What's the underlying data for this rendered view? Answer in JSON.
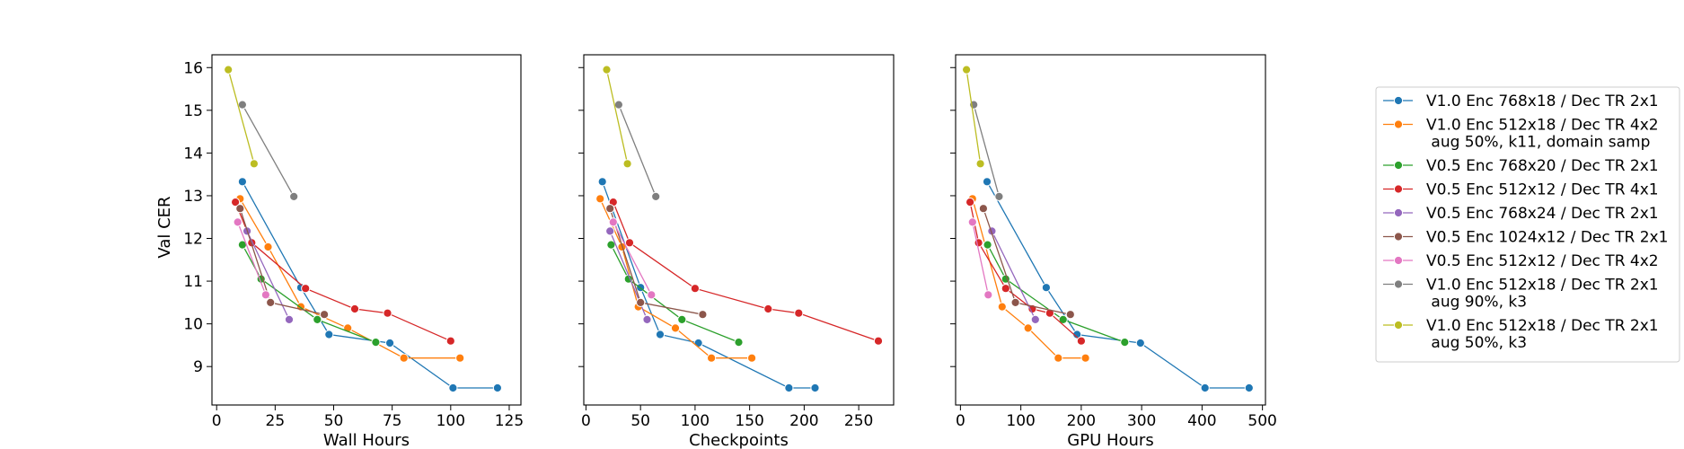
{
  "chart_data": {
    "type": "line",
    "ylabel": "Val CER",
    "sharey": true,
    "ylim": [
      8.1,
      16.3
    ],
    "yticks": [
      "9",
      "10",
      "11",
      "12",
      "13",
      "14",
      "15",
      "16"
    ],
    "legend_placement": "right",
    "colors": [
      "#1f77b4",
      "#ff7f0e",
      "#2ca02c",
      "#d62728",
      "#9467bd",
      "#8c564b",
      "#e377c2",
      "#7f7f7f",
      "#bcbd22"
    ],
    "legend": [
      [
        "V1.0 Enc 768x18 / Dec TR 2x1"
      ],
      [
        "V1.0 Enc 512x18 / Dec TR 4x2",
        " aug 50%, k11, domain samp"
      ],
      [
        "V0.5 Enc 768x20 / Dec TR 2x1"
      ],
      [
        "V0.5 Enc 512x12 / Dec TR 4x1"
      ],
      [
        "V0.5 Enc 768x24 / Dec TR 2x1"
      ],
      [
        "V0.5 Enc 1024x12 / Dec TR 2x1"
      ],
      [
        "V0.5 Enc 512x12 / Dec TR 4x2"
      ],
      [
        "V1.0 Enc 512x18 / Dec TR 2x1",
        " aug 90%, k3"
      ],
      [
        "V1.0 Enc 512x18 / Dec TR 2x1",
        " aug 50%, k3"
      ]
    ],
    "panels": [
      {
        "xlabel": "Wall Hours",
        "xlim": [
          -2,
          130
        ],
        "xticks": [
          "0",
          "25",
          "50",
          "75",
          "100",
          "125"
        ],
        "series": [
          [
            [
              11,
              13.33
            ],
            [
              36,
              10.85
            ],
            [
              48,
              9.75
            ],
            [
              74,
              9.55
            ],
            [
              101,
              8.5
            ],
            [
              120,
              8.5
            ]
          ],
          [
            [
              10,
              12.93
            ],
            [
              22,
              11.8
            ],
            [
              36,
              10.4
            ],
            [
              56,
              9.9
            ],
            [
              80,
              9.2
            ],
            [
              104,
              9.2
            ]
          ],
          [
            [
              11,
              11.85
            ],
            [
              19,
              11.05
            ],
            [
              43,
              10.1
            ],
            [
              68,
              9.57
            ]
          ],
          [
            [
              8,
              12.85
            ],
            [
              15,
              11.9
            ],
            [
              38,
              10.83
            ],
            [
              59,
              10.35
            ],
            [
              73,
              10.25
            ],
            [
              100,
              9.6
            ]
          ],
          [
            [
              13,
              12.17
            ],
            [
              31,
              10.1
            ]
          ],
          [
            [
              10,
              12.7
            ],
            [
              23,
              10.5
            ],
            [
              46,
              10.22
            ]
          ],
          [
            [
              9,
              12.38
            ],
            [
              21,
              10.68
            ]
          ],
          [
            [
              11,
              15.13
            ],
            [
              33,
              12.98
            ]
          ],
          [
            [
              5,
              15.95
            ],
            [
              16,
              13.75
            ]
          ]
        ]
      },
      {
        "xlabel": "Checkpoints",
        "xlim": [
          -2,
          282
        ],
        "xticks": [
          "0",
          "50",
          "100",
          "150",
          "200",
          "250"
        ],
        "series": [
          [
            [
              15,
              13.33
            ],
            [
              50,
              10.85
            ],
            [
              68,
              9.75
            ],
            [
              103,
              9.55
            ],
            [
              186,
              8.5
            ],
            [
              210,
              8.5
            ]
          ],
          [
            [
              13,
              12.93
            ],
            [
              33,
              11.8
            ],
            [
              48,
              10.4
            ],
            [
              82,
              9.9
            ],
            [
              115,
              9.2
            ],
            [
              152,
              9.2
            ]
          ],
          [
            [
              23,
              11.85
            ],
            [
              39,
              11.05
            ],
            [
              88,
              10.1
            ],
            [
              140,
              9.57
            ]
          ],
          [
            [
              25,
              12.85
            ],
            [
              40,
              11.9
            ],
            [
              100,
              10.83
            ],
            [
              167,
              10.35
            ],
            [
              195,
              10.25
            ],
            [
              268,
              9.6
            ]
          ],
          [
            [
              22,
              12.17
            ],
            [
              56,
              10.1
            ]
          ],
          [
            [
              22,
              12.7
            ],
            [
              50,
              10.5
            ],
            [
              107,
              10.22
            ]
          ],
          [
            [
              25,
              12.38
            ],
            [
              60,
              10.68
            ]
          ],
          [
            [
              30,
              15.13
            ],
            [
              64,
              12.98
            ]
          ],
          [
            [
              19,
              15.95
            ],
            [
              38,
              13.75
            ]
          ]
        ]
      },
      {
        "xlabel": "GPU Hours",
        "xlim": [
          -8,
          505
        ],
        "xticks": [
          "0",
          "100",
          "200",
          "300",
          "400",
          "500"
        ],
        "series": [
          [
            [
              44,
              13.33
            ],
            [
              142,
              10.85
            ],
            [
              193,
              9.75
            ],
            [
              298,
              9.55
            ],
            [
              405,
              8.5
            ],
            [
              478,
              8.5
            ]
          ],
          [
            [
              20,
              12.93
            ],
            [
              69,
              10.4
            ],
            [
              112,
              9.9
            ],
            [
              162,
              9.2
            ],
            [
              207,
              9.2
            ]
          ],
          [
            [
              45,
              11.85
            ],
            [
              75,
              11.05
            ],
            [
              170,
              10.1
            ],
            [
              272,
              9.57
            ]
          ],
          [
            [
              16,
              12.85
            ],
            [
              30,
              11.9
            ],
            [
              75,
              10.83
            ],
            [
              119,
              10.35
            ],
            [
              148,
              10.25
            ],
            [
              200,
              9.6
            ]
          ],
          [
            [
              52,
              12.17
            ],
            [
              124,
              10.1
            ]
          ],
          [
            [
              38,
              12.7
            ],
            [
              91,
              10.5
            ],
            [
              182,
              10.22
            ]
          ],
          [
            [
              20,
              12.38
            ],
            [
              46,
              10.68
            ]
          ],
          [
            [
              22,
              15.13
            ],
            [
              64,
              12.98
            ]
          ],
          [
            [
              10,
              15.95
            ],
            [
              33,
              13.75
            ]
          ]
        ]
      }
    ]
  }
}
